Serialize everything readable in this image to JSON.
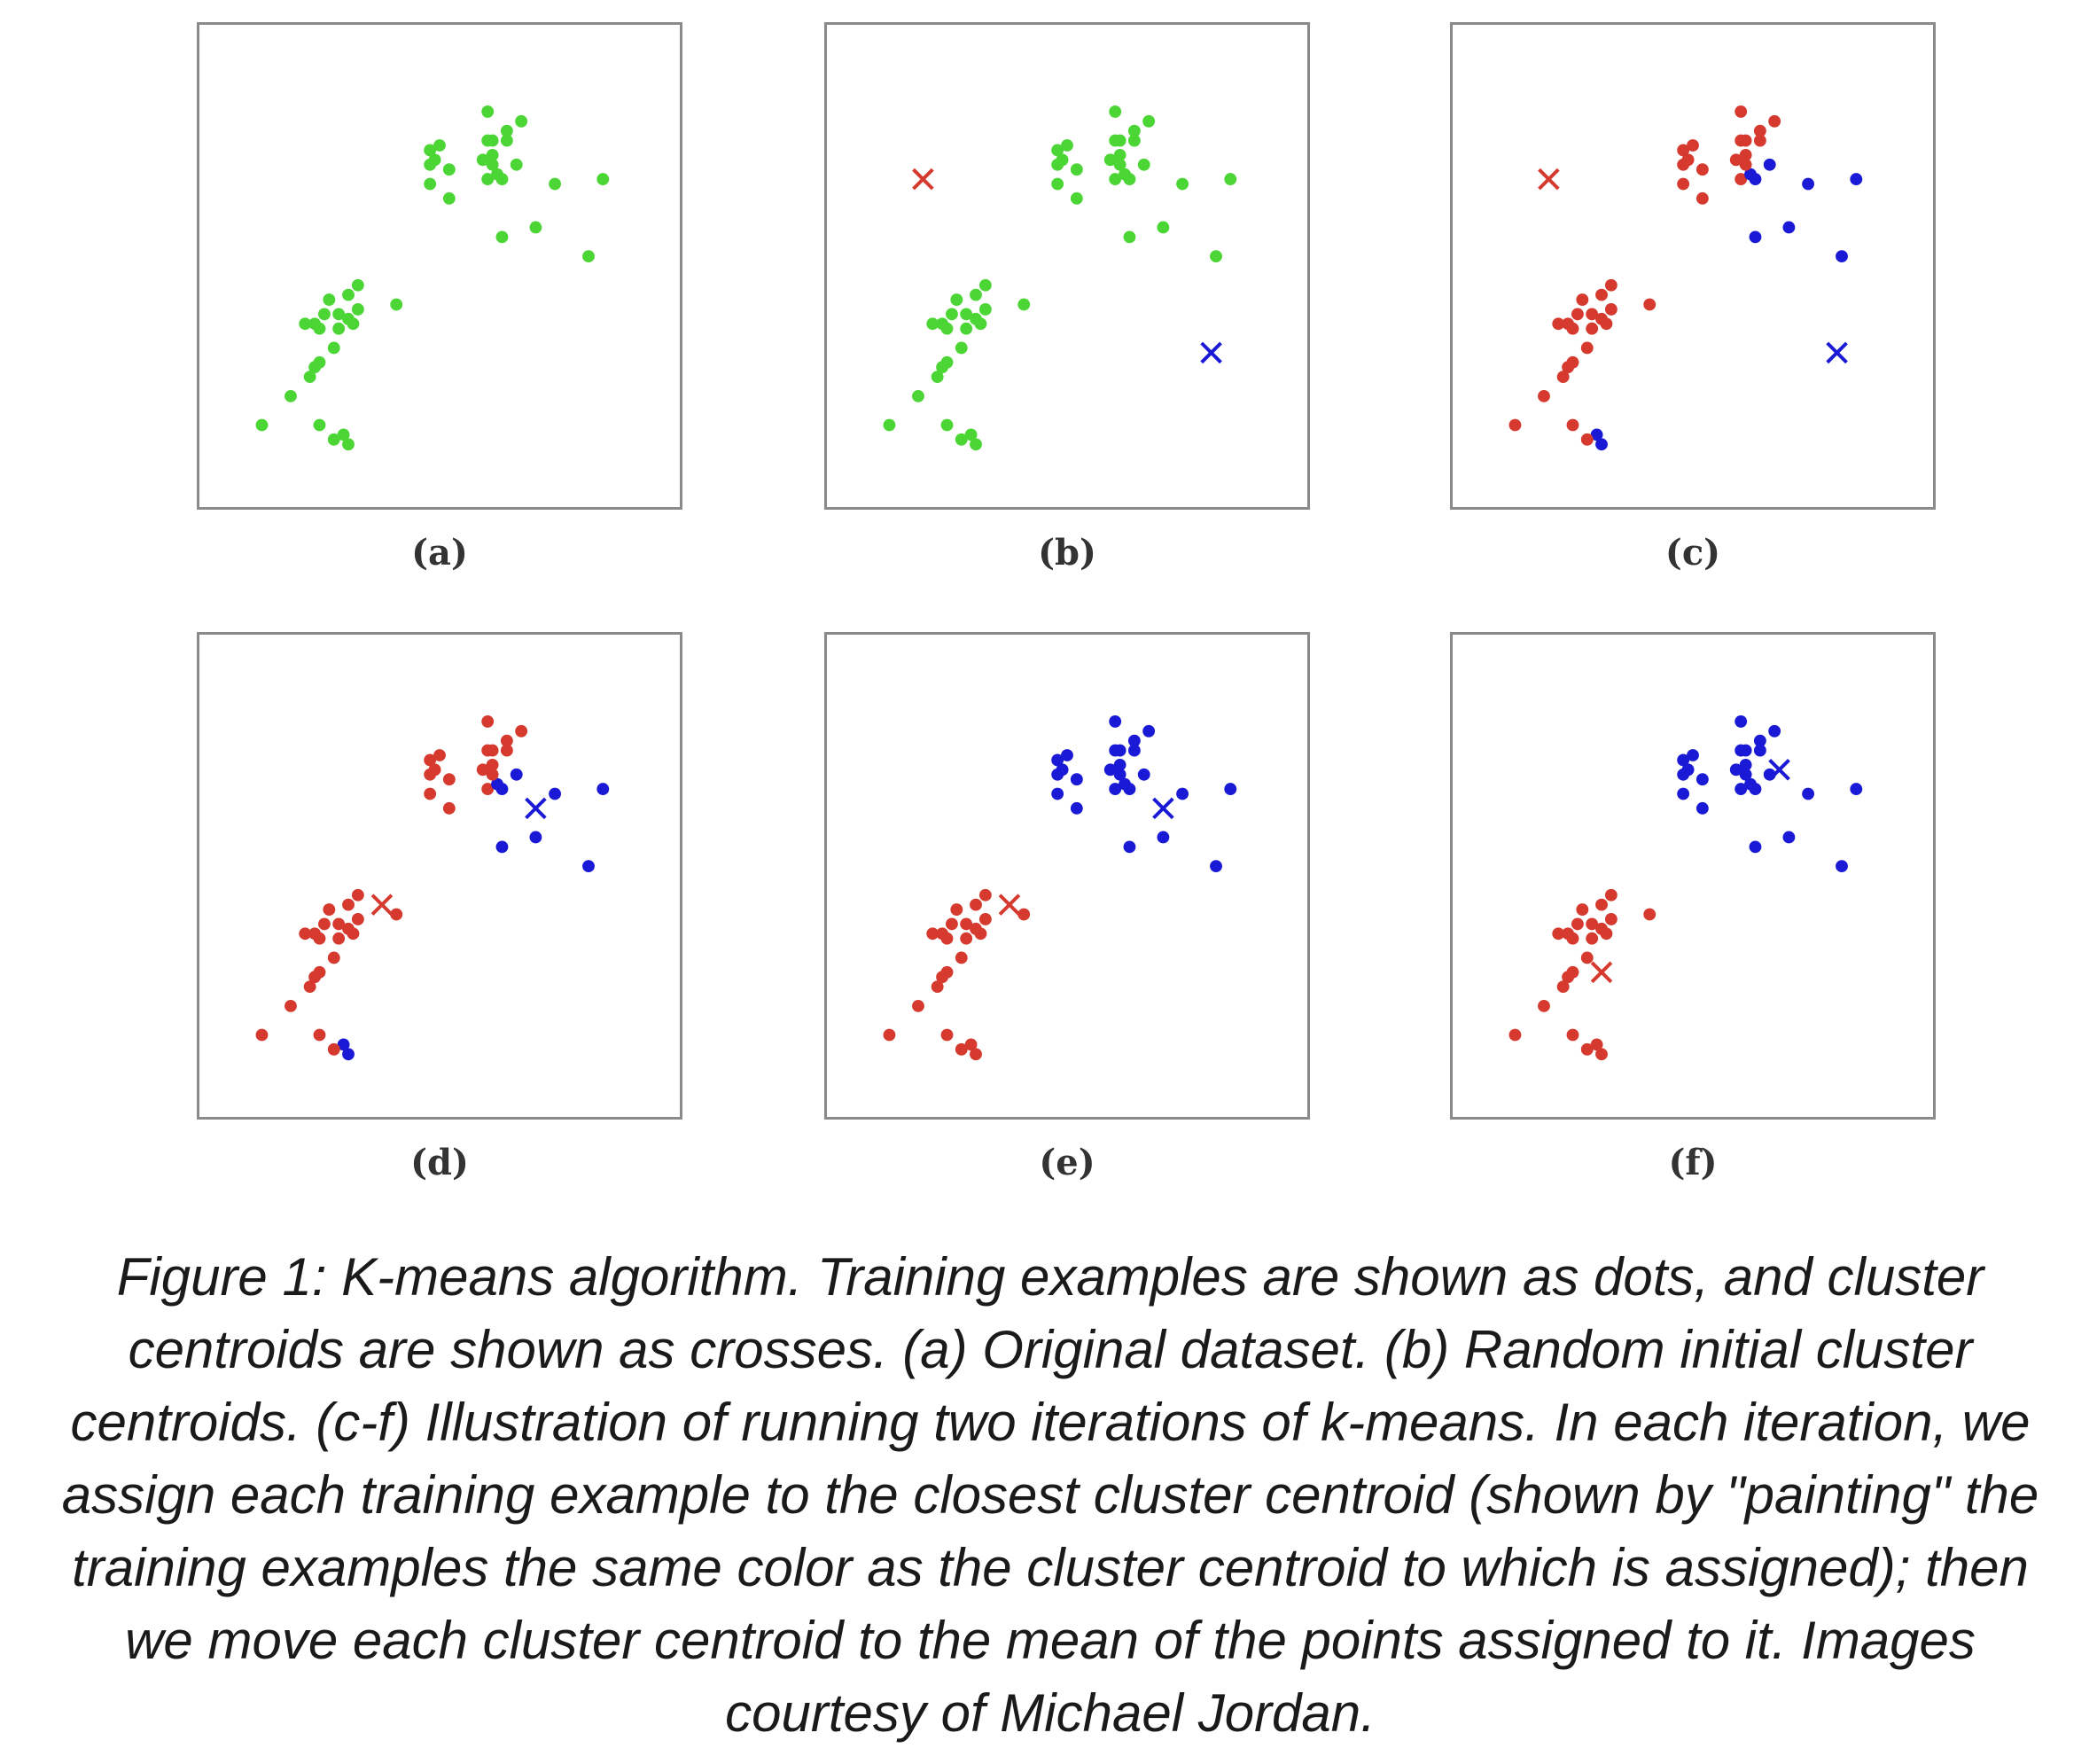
{
  "colors": {
    "unassigned": "#4cd636",
    "cluster_red": "#d63a2f",
    "cluster_blue": "#1a1ad6"
  },
  "chart_data": [
    {
      "type": "scatter",
      "label": "(a)",
      "xlim": [
        0,
        1
      ],
      "ylim": [
        0,
        1
      ],
      "points": [
        [
          0.13,
          0.17
        ],
        [
          0.19,
          0.23
        ],
        [
          0.23,
          0.27
        ],
        [
          0.25,
          0.3
        ],
        [
          0.28,
          0.33
        ],
        [
          0.25,
          0.37
        ],
        [
          0.24,
          0.38
        ],
        [
          0.26,
          0.4
        ],
        [
          0.29,
          0.37
        ],
        [
          0.31,
          0.39
        ],
        [
          0.32,
          0.38
        ],
        [
          0.33,
          0.41
        ],
        [
          0.29,
          0.4
        ],
        [
          0.27,
          0.43
        ],
        [
          0.31,
          0.44
        ],
        [
          0.41,
          0.42
        ],
        [
          0.33,
          0.46
        ],
        [
          0.22,
          0.38
        ],
        [
          0.24,
          0.29
        ],
        [
          0.25,
          0.17
        ],
        [
          0.3,
          0.15
        ],
        [
          0.28,
          0.14
        ],
        [
          0.31,
          0.13
        ],
        [
          0.48,
          0.71
        ],
        [
          0.49,
          0.72
        ],
        [
          0.48,
          0.74
        ],
        [
          0.6,
          0.68
        ],
        [
          0.62,
          0.69
        ],
        [
          0.61,
          0.71
        ],
        [
          0.63,
          0.68
        ],
        [
          0.6,
          0.76
        ],
        [
          0.64,
          0.76
        ],
        [
          0.64,
          0.78
        ],
        [
          0.6,
          0.82
        ],
        [
          0.74,
          0.67
        ],
        [
          0.63,
          0.56
        ],
        [
          0.5,
          0.75
        ],
        [
          0.66,
          0.71
        ],
        [
          0.67,
          0.8
        ],
        [
          0.7,
          0.58
        ],
        [
          0.61,
          0.76
        ],
        [
          0.59,
          0.72
        ],
        [
          0.61,
          0.73
        ],
        [
          0.84,
          0.68
        ],
        [
          0.81,
          0.52
        ],
        [
          0.52,
          0.64
        ],
        [
          0.48,
          0.67
        ],
        [
          0.52,
          0.7
        ]
      ],
      "colors": "all-green",
      "centroids": []
    },
    {
      "type": "scatter",
      "label": "(b)",
      "centroids": [
        [
          0.2,
          0.68,
          "red"
        ],
        [
          0.8,
          0.32,
          "blue"
        ]
      ]
    },
    {
      "type": "scatter",
      "label": "(c)",
      "centroids": [
        [
          0.2,
          0.68,
          "red"
        ],
        [
          0.8,
          0.32,
          "blue"
        ]
      ]
    },
    {
      "type": "scatter",
      "label": "(d)",
      "centroids": [
        [
          0.38,
          0.44,
          "red"
        ],
        [
          0.7,
          0.64,
          "blue"
        ]
      ]
    },
    {
      "type": "scatter",
      "label": "(e)",
      "centroids": [
        [
          0.38,
          0.44,
          "red"
        ],
        [
          0.7,
          0.64,
          "blue"
        ]
      ]
    },
    {
      "type": "scatter",
      "label": "(f)",
      "centroids": [
        [
          0.31,
          0.3,
          "red"
        ],
        [
          0.68,
          0.72,
          "blue"
        ]
      ]
    }
  ],
  "caption": "Figure 1: K-means algorithm. Training examples are shown as dots, and cluster centroids are shown as crosses. (a) Original dataset. (b) Random initial cluster centroids. (c-f) Illustration of running two iterations of k-means. In each iteration, we assign each training example to the closest cluster centroid (shown by \"painting\" the training examples the same color as the cluster centroid to which is assigned); then we move each cluster centroid to the mean of the points assigned to it. Images courtesy of Michael Jordan."
}
